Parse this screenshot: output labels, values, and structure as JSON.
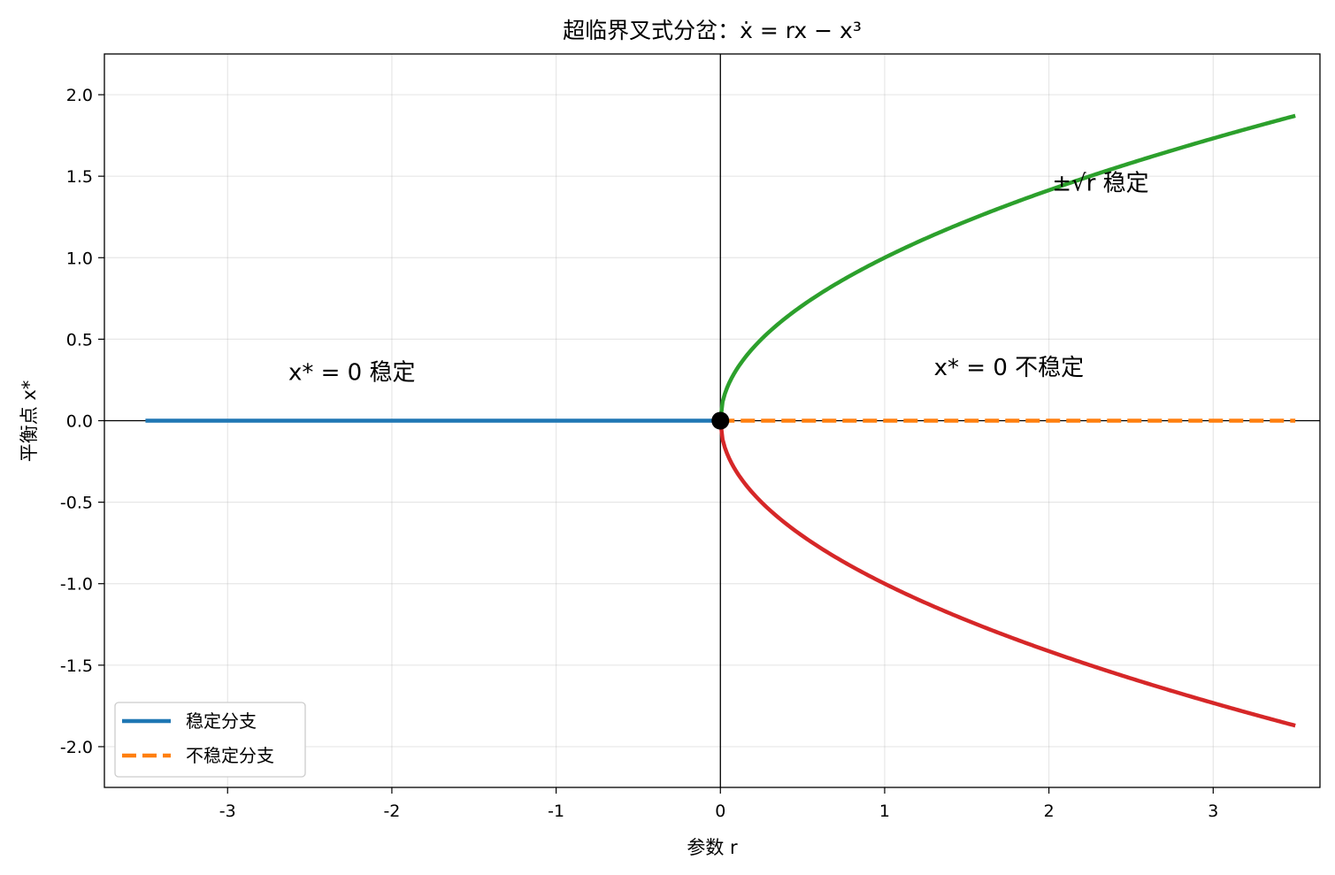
{
  "chart_data": {
    "type": "line",
    "title": "超临界叉式分岔：ẋ = rx − x³",
    "xlabel": "参数 r",
    "ylabel": "平衡点 x*",
    "xlim": [
      -3.75,
      3.65
    ],
    "ylim": [
      -2.25,
      2.25
    ],
    "xticks": [
      -3,
      -2,
      -1,
      0,
      1,
      2,
      3
    ],
    "xtick_labels": [
      "-3",
      "-2",
      "-1",
      "0",
      "1",
      "2",
      "3"
    ],
    "yticks": [
      -2.0,
      -1.5,
      -1.0,
      -0.5,
      0.0,
      0.5,
      1.0,
      1.5,
      2.0
    ],
    "ytick_labels": [
      "-2.0",
      "-1.5",
      "-1.0",
      "-0.5",
      "0.0",
      "0.5",
      "1.0",
      "1.5",
      "2.0"
    ],
    "grid": true,
    "legend_position": "lower-left",
    "series": [
      {
        "name": "稳定分支",
        "color": "#1f77b4",
        "style": "solid",
        "x": [
          -3.5,
          0
        ],
        "y": [
          0,
          0
        ]
      },
      {
        "name": "不稳定分支",
        "color": "#ff7f0e",
        "style": "dashed",
        "x": [
          0,
          3.5
        ],
        "y": [
          0,
          0
        ]
      },
      {
        "color": "#2ca02c",
        "style": "solid",
        "function": "sqrt",
        "x_range": [
          0,
          3.5
        ]
      },
      {
        "color": "#d62728",
        "style": "solid",
        "function": "neg_sqrt",
        "x_range": [
          0,
          3.5
        ]
      }
    ],
    "bifurcation_point": {
      "x": 0,
      "y": 0,
      "color": "#000000"
    },
    "annotations": [
      {
        "text": "x* = 0 稳定",
        "x": -2.63,
        "y": 0.25
      },
      {
        "text": "x* = 0 不稳定",
        "x": 1.3,
        "y": 0.28
      },
      {
        "text": "±√r 稳定",
        "x": 2.02,
        "y": 1.41
      }
    ]
  }
}
